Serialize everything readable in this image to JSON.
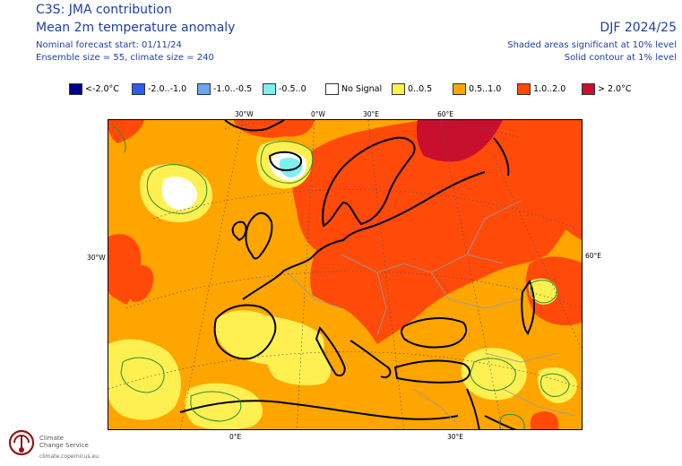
{
  "header": {
    "title": "C3S: JMA contribution",
    "subtitle": "Mean 2m temperature anomaly",
    "forecast_start": "Nominal forecast start: 01/11/24",
    "ensemble": "Ensemble size = 55, climate size = 240",
    "season": "DJF 2024/25",
    "shading_note": "Shaded areas significant at 10% level",
    "contour_note": "Solid contour at 1% level"
  },
  "legend": [
    {
      "label": "<-2.0°C",
      "color": "#00008b"
    },
    {
      "label": "-2.0..-1.0",
      "color": "#2a5cf0"
    },
    {
      "label": "-1.0..-0.5",
      "color": "#6aa6f0"
    },
    {
      "label": "-0.5..0",
      "color": "#7ff0f0"
    },
    {
      "label": "No Signal",
      "color": "#ffffff"
    },
    {
      "label": "0..0.5",
      "color": "#fff052"
    },
    {
      "label": "0.5..1.0",
      "color": "#ffa500"
    },
    {
      "label": "1.0..2.0",
      "color": "#ff4a0a"
    },
    {
      "label": "> 2.0°C",
      "color": "#c8102e"
    }
  ],
  "map": {
    "top_lon_labels": [
      "30°W",
      "0°W",
      "30°E",
      "60°E"
    ],
    "left_lat_label": "30°W",
    "right_lat_label": "60°E",
    "bottom_lon_labels": [
      "0°E",
      "30°E"
    ],
    "colors": {
      "orange": "#ffa500",
      "red_orange": "#ff4a0a",
      "dark_red": "#c8102e",
      "yellow": "#fff052",
      "cyan": "#7ff0f0",
      "white": "#ffffff",
      "coast": "#000000",
      "border": "#9a9a9a",
      "contour": "#2e8b2e"
    }
  },
  "logo": {
    "name_line1": "Climate",
    "name_line2": "Change Service",
    "url": "climate.copernicus.eu"
  }
}
